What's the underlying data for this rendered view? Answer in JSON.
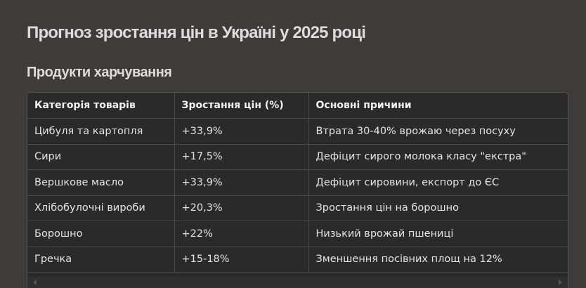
{
  "page": {
    "title": "Прогноз зростання цін в Україні у 2025 році",
    "section_title": "Продукти харчування"
  },
  "table": {
    "headers": [
      "Категорія товарів",
      "Зростання цін (%)",
      "Основні причини"
    ],
    "rows": [
      [
        "Цибуля та картопля",
        "+33,9%",
        "Втрата 30-40% врожаю через посуху"
      ],
      [
        "Сири",
        "+17,5%",
        "Дефіцит сирого молока класу \"екстра\""
      ],
      [
        "Вершкове масло",
        "+33,9%",
        "Дефіцит сировини, експорт до ЄС"
      ],
      [
        "Хлібобулочні вироби",
        "+20,3%",
        "Зростання цін на борошно"
      ],
      [
        "Борошно",
        "+22%",
        "Низький врожай пшениці"
      ],
      [
        "Гречка",
        "+15-18%",
        "Зменшення посівних площ на 12%"
      ]
    ]
  },
  "colors": {
    "background": "#3d3c39",
    "table_background": "#2a2a2a",
    "text": "#ececec"
  }
}
